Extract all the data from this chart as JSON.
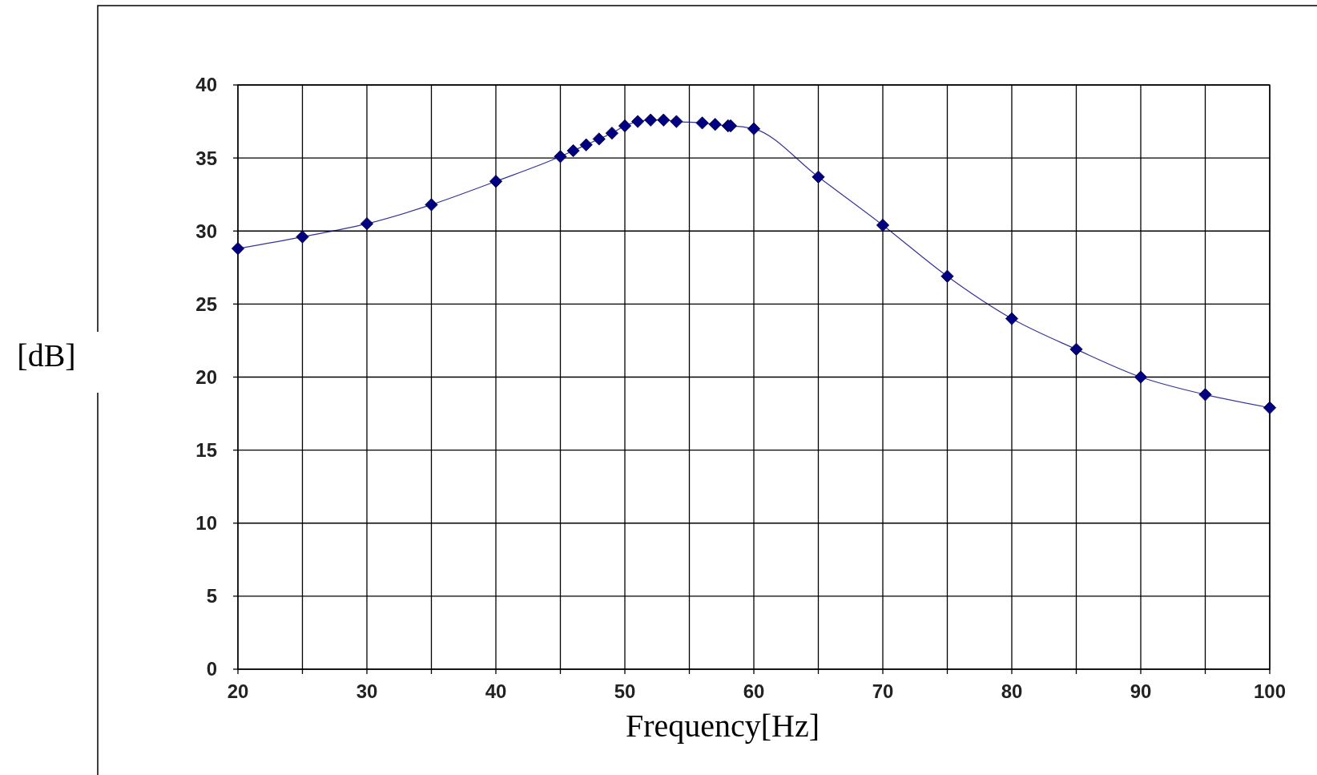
{
  "chart_data": {
    "type": "line",
    "xlabel": "Frequency[Hz]",
    "ylabel": "[dB]",
    "x": [
      20,
      25,
      30,
      35,
      40,
      45,
      46,
      47,
      48,
      49,
      50,
      51,
      52,
      53,
      54,
      56,
      57,
      58,
      58.2,
      60,
      65,
      70,
      75,
      80,
      85,
      90,
      95,
      100
    ],
    "series": [
      {
        "color": "#000080",
        "values": [
          28.8,
          29.6,
          30.5,
          31.8,
          33.4,
          35.1,
          35.5,
          35.9,
          36.3,
          36.7,
          37.2,
          37.5,
          37.6,
          37.6,
          37.5,
          37.4,
          37.3,
          37.2,
          37.2,
          37.0,
          33.7,
          30.4,
          26.9,
          24.0,
          21.9,
          20.0,
          18.8,
          17.9
        ]
      }
    ],
    "xlim": [
      20,
      100
    ],
    "xticks": [
      20,
      {
        "value": 25,
        "label": null
      },
      30,
      {
        "value": 35,
        "label": null
      },
      40,
      {
        "value": 45,
        "label": null
      },
      50,
      {
        "value": 55,
        "label": null
      },
      60,
      {
        "value": 65,
        "label": null
      },
      70,
      {
        "value": 75,
        "label": null
      },
      80,
      {
        "value": 85,
        "label": null
      },
      90,
      {
        "value": 95,
        "label": null
      },
      100
    ],
    "ylim": [
      0,
      40
    ],
    "yticks": [
      0,
      5,
      10,
      15,
      20,
      25,
      30,
      35,
      40
    ],
    "grid": true,
    "marker": "diamond",
    "line_style": "solid"
  }
}
